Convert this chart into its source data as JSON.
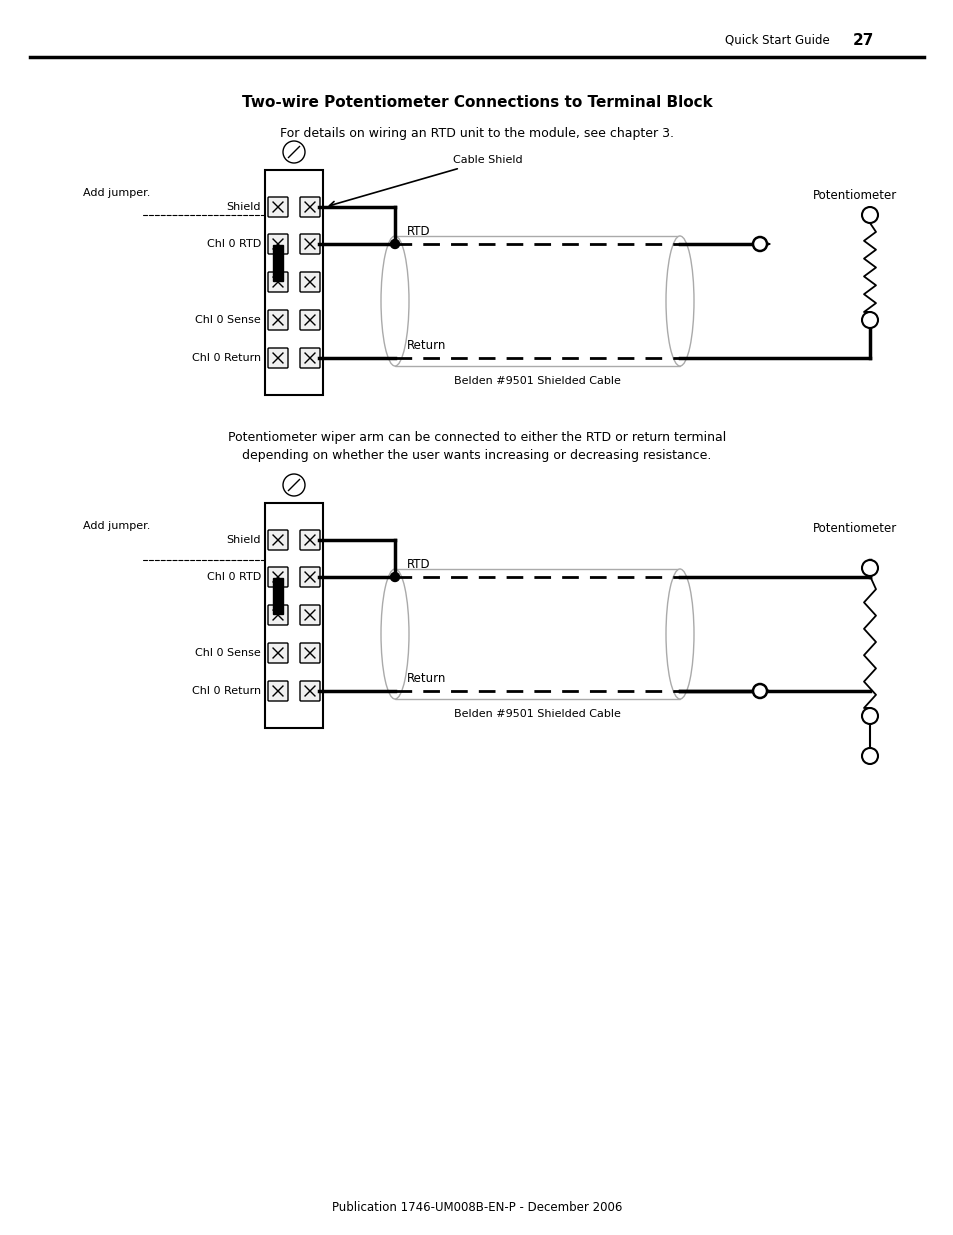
{
  "title": "Two-wire Potentiometer Connections to Terminal Block",
  "subtitle": "For details on wiring an RTD unit to the module, see chapter 3.",
  "header_right": "Quick Start Guide",
  "header_page": "27",
  "footer": "Publication 1746-UM008B-EN-P - December 2006",
  "bg_color": "#ffffff",
  "middle_text_line1": "Potentiometer wiper arm can be connected to either the RTD or return terminal",
  "middle_text_line2": "depending on whether the user wants increasing or decreasing resistance."
}
